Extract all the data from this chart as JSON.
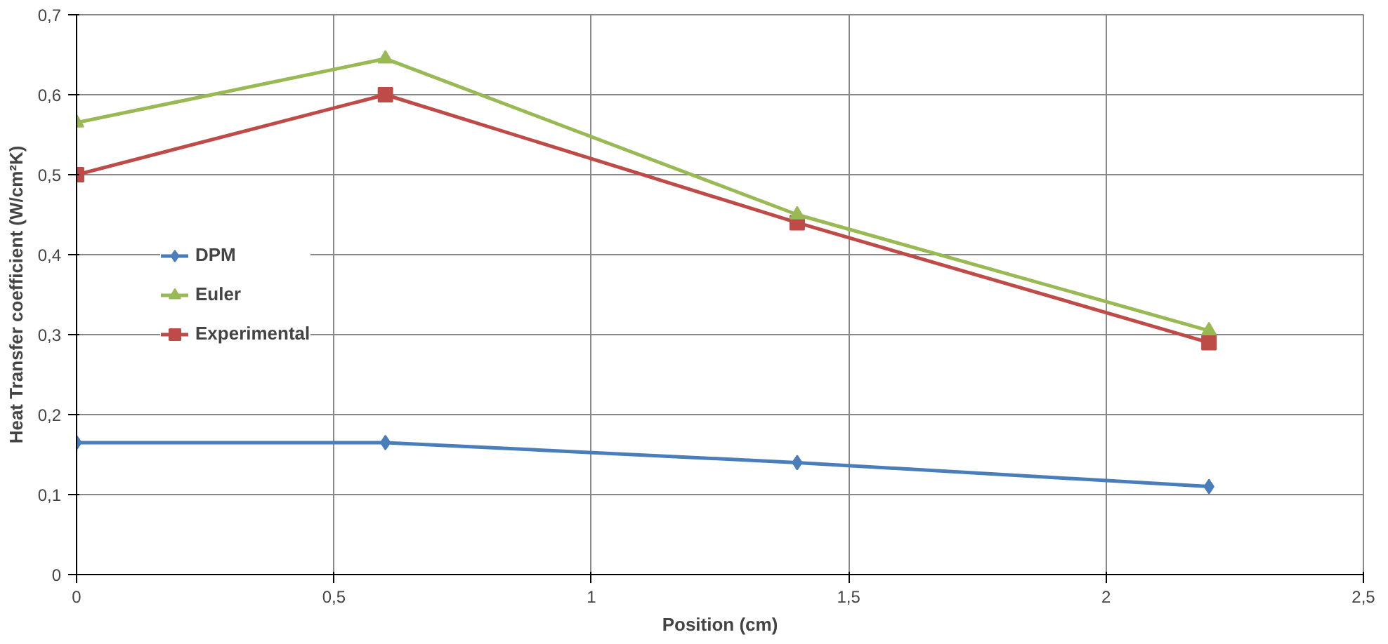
{
  "chart_data": {
    "type": "line",
    "xlabel": "Position (cm)",
    "ylabel": "Heat Transfer coefficient (W/cm²K)",
    "x": [
      0,
      0.6,
      1.4,
      2.2
    ],
    "series": [
      {
        "name": "DPM",
        "color": "#4a7ebb",
        "marker": "diamond",
        "values": [
          0.165,
          0.165,
          0.14,
          0.11
        ]
      },
      {
        "name": "Euler",
        "color": "#98b954",
        "marker": "triangle",
        "values": [
          0.565,
          0.645,
          0.45,
          0.305
        ]
      },
      {
        "name": "Experimental",
        "color": "#be4b48",
        "marker": "square",
        "values": [
          0.5,
          0.6,
          0.44,
          0.29
        ]
      }
    ],
    "xlim": [
      0,
      2.5
    ],
    "ylim": [
      0,
      0.7
    ],
    "xticks": [
      0,
      {
        "value": 0.5,
        "label": "0,5"
      },
      1,
      {
        "value": 1.5,
        "label": "1,5"
      },
      2,
      {
        "value": 2.5,
        "label": "2,5"
      }
    ],
    "yticks": [
      0,
      {
        "value": 0.1,
        "label": "0,1"
      },
      {
        "value": 0.2,
        "label": "0,2"
      },
      {
        "value": 0.3,
        "label": "0,3"
      },
      {
        "value": 0.4,
        "label": "0,4"
      },
      {
        "value": 0.5,
        "label": "0,5"
      },
      {
        "value": 0.6,
        "label": "0,6"
      },
      {
        "value": 0.7,
        "label": "0,7"
      }
    ],
    "grid": true,
    "legend": "left",
    "line_style": "solid"
  }
}
